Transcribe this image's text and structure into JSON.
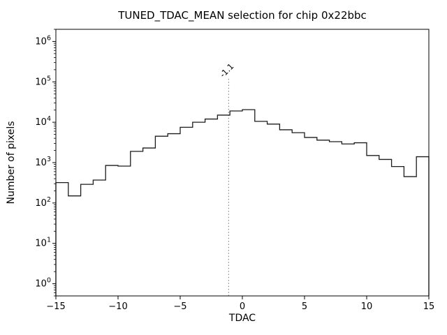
{
  "chart_data": {
    "type": "histogram",
    "title": "TUNED_TDAC_MEAN selection for chip 0x22bbc",
    "xlabel": "TDAC",
    "ylabel": "Number of pixels",
    "xlim": [
      -15,
      15
    ],
    "ylim": [
      0.5,
      2000000
    ],
    "yscale": "log",
    "grid": false,
    "legend": null,
    "bin_start": -15,
    "bin_width": 1,
    "values": [
      320,
      150,
      290,
      370,
      850,
      820,
      1900,
      2300,
      4500,
      5200,
      7500,
      10000,
      12000,
      15000,
      19000,
      20500,
      10500,
      9000,
      6500,
      5500,
      4200,
      3600,
      3300,
      2900,
      3100,
      1500,
      1200,
      800,
      450,
      1400
    ],
    "xticks": [
      {
        "v": -15,
        "label": "−15"
      },
      {
        "v": -10,
        "label": "−10"
      },
      {
        "v": -5,
        "label": "−5"
      },
      {
        "v": 0,
        "label": "0"
      },
      {
        "v": 5,
        "label": "5"
      },
      {
        "v": 10,
        "label": "10"
      },
      {
        "v": 15,
        "label": "15"
      }
    ],
    "ytick_exponents": [
      0,
      1,
      2,
      3,
      4,
      5,
      6
    ],
    "line_color": "#1c1c1c",
    "axis_color": "#000000",
    "vline": {
      "x": -1.1,
      "label": "-1.1",
      "top": 120000,
      "color": "#8a8a8a",
      "style": "dotted"
    }
  }
}
